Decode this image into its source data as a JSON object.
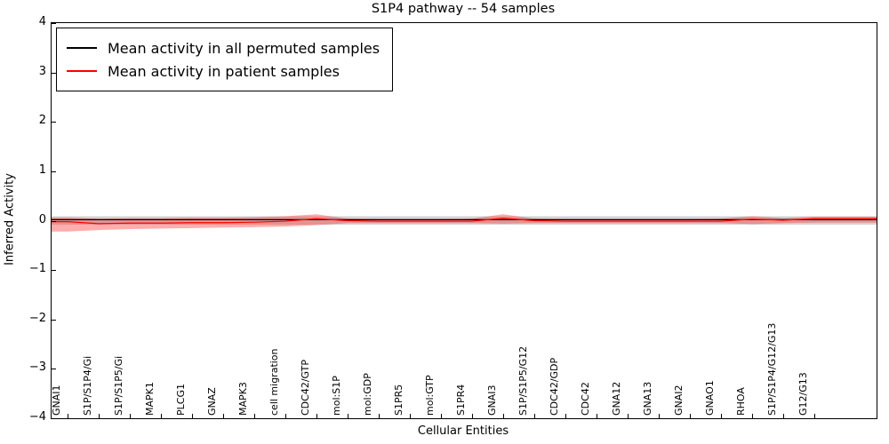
{
  "chart_data": {
    "type": "line",
    "title": "S1P4 pathway -- 54 samples",
    "xlabel": "Cellular Entities",
    "ylabel": "Inferred Activity",
    "ylim": [
      -4,
      4
    ],
    "yticks": [
      4,
      3,
      2,
      1,
      0,
      -1,
      -2,
      -3,
      -4
    ],
    "grid": false,
    "legend_position": "upper left",
    "categories": [
      "GNAI1",
      "S1P/S1P4/Gi",
      "S1P/S1P5/Gi",
      "MAPK1",
      "PLCG1",
      "GNAZ",
      "MAPK3",
      "cell migration",
      "CDC42/GTP",
      "mol:S1P",
      "mol:GDP",
      "S1PR5",
      "mol:GTP",
      "S1PR4",
      "GNAI3",
      "S1P/S1P5/G12",
      "CDC42/GDP",
      "CDC42",
      "GNA12",
      "GNA13",
      "GNAI2",
      "GNAO1",
      "RHOA",
      "S1P/S1P4/G12/G13",
      "G12/G13"
    ],
    "series": [
      {
        "name": "Mean activity in all permuted samples",
        "color": "#000000",
        "values": [
          0.02,
          0.02,
          0.02,
          0.02,
          0.02,
          0.02,
          0.02,
          0.02,
          0.02,
          0.02,
          0.02,
          0.02,
          0.02,
          0.02,
          0.02,
          0.02,
          0.02,
          0.02,
          0.02,
          0.02,
          0.02,
          0.02,
          0.02,
          0.02,
          0.02
        ]
      },
      {
        "name": "Mean activity in patient samples",
        "color": "#ff0000",
        "values": [
          -0.02,
          -0.06,
          -0.05,
          -0.05,
          -0.04,
          -0.04,
          -0.03,
          -0.01,
          0.04,
          0.0,
          -0.01,
          -0.01,
          -0.01,
          -0.01,
          0.05,
          0.0,
          -0.01,
          -0.01,
          -0.01,
          -0.01,
          -0.01,
          -0.01,
          0.03,
          0.01,
          0.04
        ]
      }
    ],
    "bands": [
      {
        "series": "Mean activity in all permuted samples",
        "color": "rgba(128,128,128,0.35)",
        "upper": [
          0.09,
          0.09,
          0.09,
          0.09,
          0.09,
          0.09,
          0.09,
          0.09,
          0.09,
          0.09,
          0.09,
          0.09,
          0.09,
          0.09,
          0.09,
          0.09,
          0.09,
          0.09,
          0.09,
          0.09,
          0.09,
          0.09,
          0.09,
          0.09,
          0.09
        ],
        "lower": [
          -0.08,
          -0.08,
          -0.08,
          -0.08,
          -0.08,
          -0.08,
          -0.08,
          -0.08,
          -0.08,
          -0.08,
          -0.08,
          -0.08,
          -0.08,
          -0.08,
          -0.08,
          -0.08,
          -0.08,
          -0.08,
          -0.08,
          -0.08,
          -0.08,
          -0.08,
          -0.08,
          -0.08,
          -0.08
        ]
      },
      {
        "series": "Mean activity in patient samples",
        "color": "rgba(255,40,40,0.38)",
        "upper": [
          0.06,
          0.04,
          0.05,
          0.05,
          0.06,
          0.06,
          0.07,
          0.09,
          0.13,
          0.04,
          0.03,
          0.03,
          0.03,
          0.04,
          0.13,
          0.04,
          0.03,
          0.03,
          0.03,
          0.03,
          0.03,
          0.04,
          0.09,
          0.05,
          0.08
        ],
        "lower": [
          -0.22,
          -0.19,
          -0.17,
          -0.16,
          -0.15,
          -0.14,
          -0.13,
          -0.12,
          -0.09,
          -0.05,
          -0.05,
          -0.05,
          -0.05,
          -0.05,
          -0.06,
          -0.05,
          -0.05,
          -0.05,
          -0.05,
          -0.05,
          -0.05,
          -0.05,
          -0.07,
          -0.05,
          -0.04
        ]
      }
    ]
  }
}
